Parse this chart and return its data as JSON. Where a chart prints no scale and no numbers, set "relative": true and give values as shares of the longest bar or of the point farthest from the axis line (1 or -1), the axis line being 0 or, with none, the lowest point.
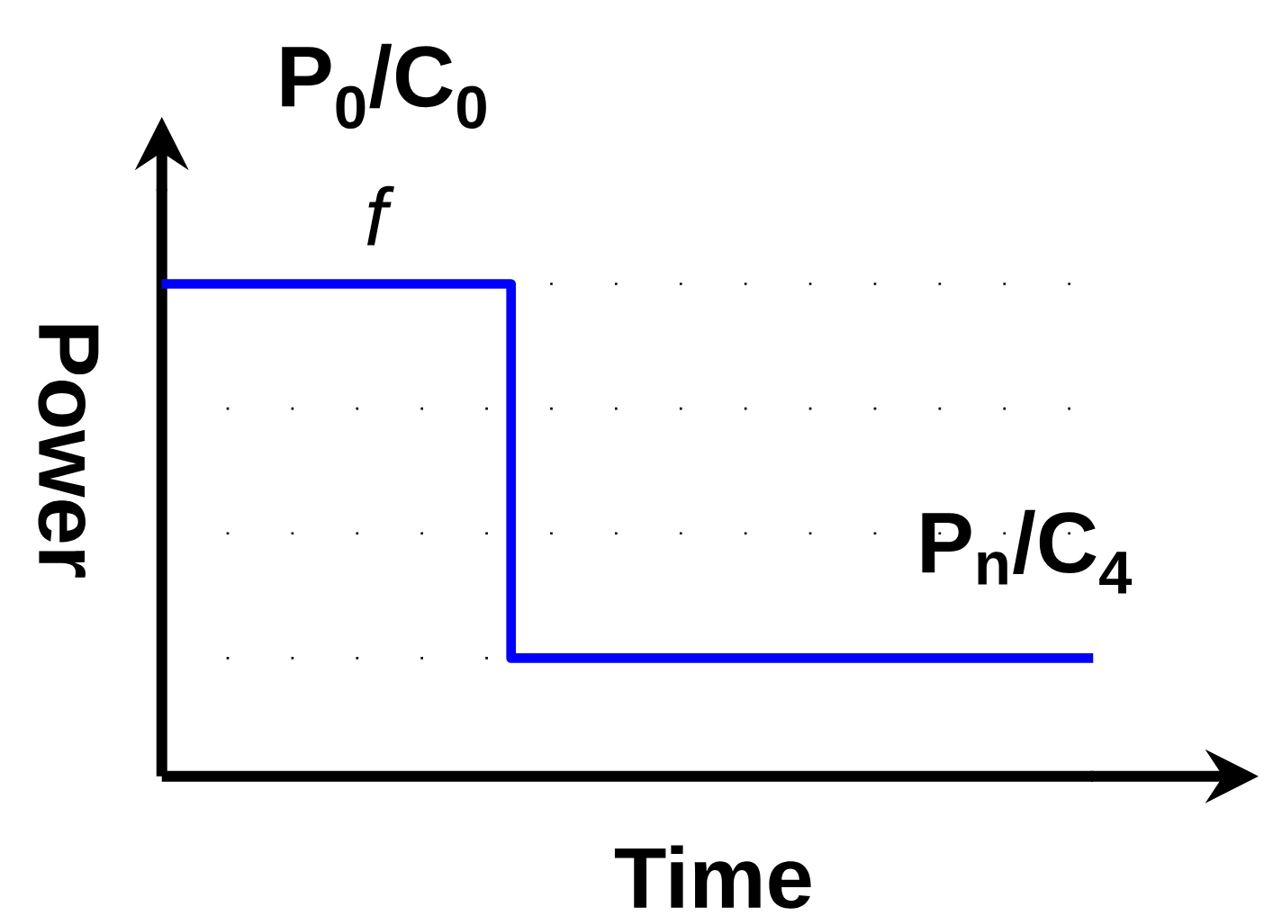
{
  "chart_data": {
    "type": "step",
    "relative": true,
    "xlabel": "Time",
    "ylabel": "Power",
    "categories": [
      null,
      null,
      null,
      null,
      null,
      null,
      null,
      null,
      null
    ],
    "series": [
      {
        "color": "#0000ff",
        "values": [
          1,
          1,
          1,
          0.24,
          0.24,
          0.24,
          0.24,
          0.24,
          0.24
        ]
      }
    ],
    "grid": "y",
    "annotations": [
      "P$_{0}$/C$_{0}$",
      "*f*",
      "P$_{n}$/C$_{4}$"
    ]
  }
}
